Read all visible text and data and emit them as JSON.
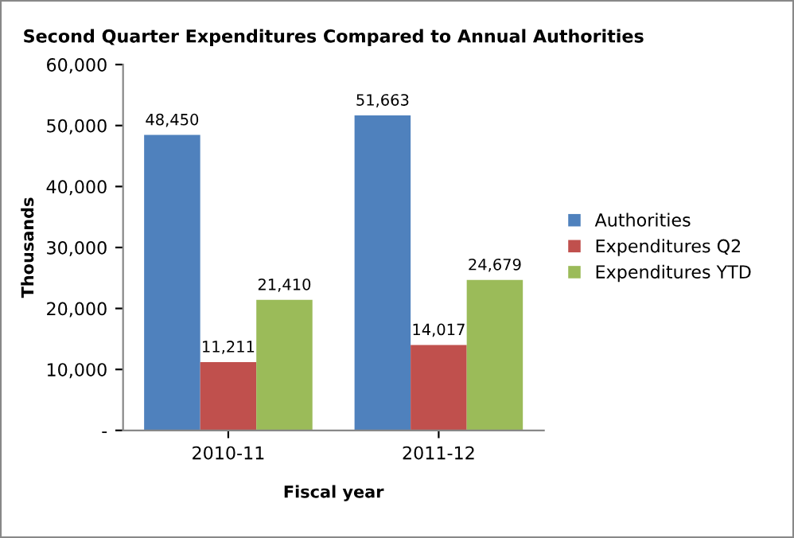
{
  "chart_data": {
    "type": "bar",
    "title": "Second Quarter Expenditures Compared to Annual Authorities",
    "xlabel": "Fiscal year",
    "ylabel": "Thousands",
    "categories": [
      "2010-11",
      "2011-12"
    ],
    "series": [
      {
        "name": "Authorities",
        "color": "#4f81bd",
        "values": [
          48450,
          51663
        ],
        "value_labels": [
          "48,450",
          "51,663"
        ]
      },
      {
        "name": "Expenditures Q2",
        "color": "#c0504d",
        "values": [
          11211,
          14017
        ],
        "value_labels": [
          "11,211",
          "14,017"
        ]
      },
      {
        "name": "Expenditures YTD",
        "color": "#9bbb59",
        "values": [
          21410,
          24679
        ],
        "value_labels": [
          "21,410",
          "24,679"
        ]
      }
    ],
    "ylim": [
      0,
      60000
    ],
    "yticks": [
      {
        "value": 0,
        "label": "-"
      },
      {
        "value": 10000,
        "label": "10,000"
      },
      {
        "value": 20000,
        "label": "20,000"
      },
      {
        "value": 30000,
        "label": "30,000"
      },
      {
        "value": 40000,
        "label": "40,000"
      },
      {
        "value": 50000,
        "label": "50,000"
      },
      {
        "value": 60000,
        "label": "60,000"
      }
    ],
    "grid": false,
    "legend": "right"
  }
}
